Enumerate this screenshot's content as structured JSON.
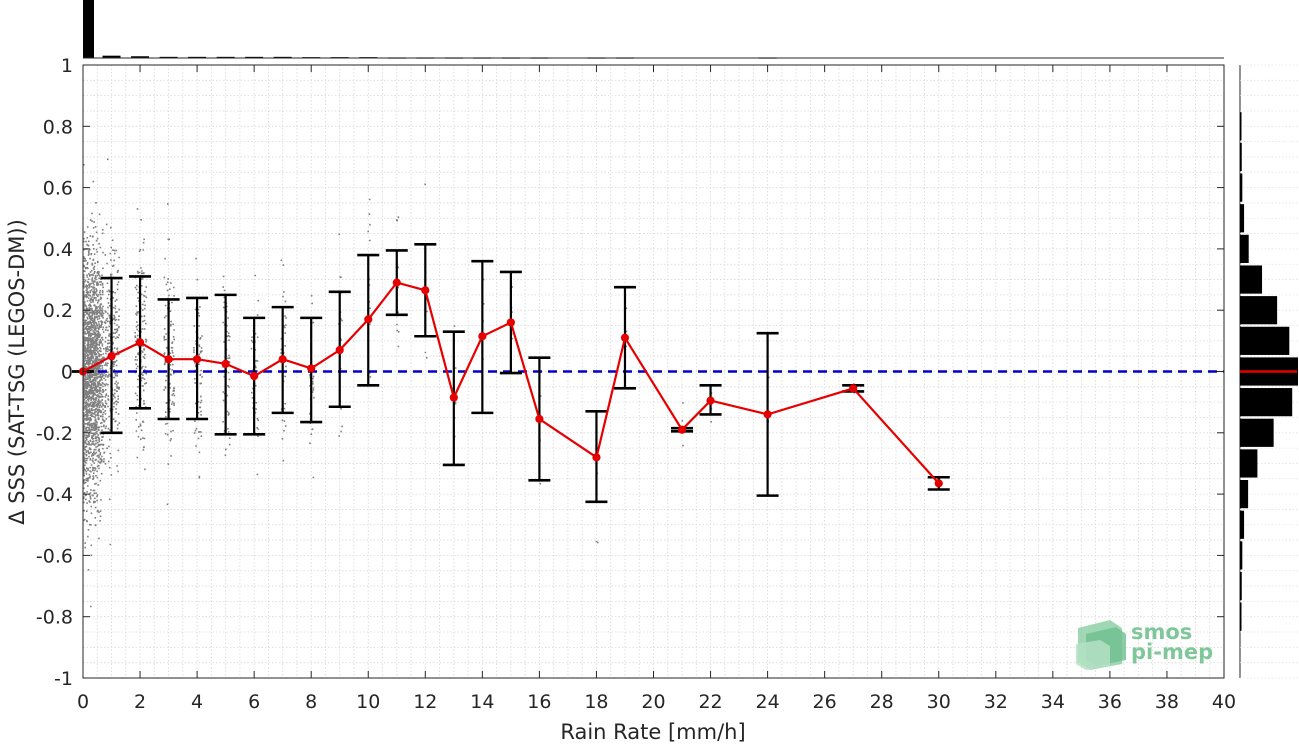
{
  "chart_data": {
    "type": "line",
    "xlabel": "Rain Rate [mm/h]",
    "ylabel": "Δ SSS (SAT-TSG (LEGOS-DM))",
    "xlim": [
      0,
      40
    ],
    "ylim": [
      -1,
      1
    ],
    "xticks": [
      0,
      2,
      4,
      6,
      8,
      10,
      12,
      14,
      16,
      18,
      20,
      22,
      24,
      26,
      28,
      30,
      32,
      34,
      36,
      38,
      40
    ],
    "yticks": [
      -1,
      -0.8,
      -0.6,
      -0.4,
      -0.2,
      0,
      0.2,
      0.4,
      0.6,
      0.8,
      1
    ],
    "grid": true,
    "reference_line": {
      "y": 0,
      "style": "dashed",
      "color": "#0000cc"
    },
    "series": [
      {
        "style": "line-with-errorbars",
        "color": "#e60000",
        "x": [
          0,
          1,
          2,
          3,
          4,
          5,
          6,
          7,
          8,
          9,
          10,
          11,
          12,
          13,
          14,
          15,
          16,
          18,
          19,
          21,
          22,
          24,
          27,
          30
        ],
        "y": [
          0.0,
          0.05,
          0.095,
          0.04,
          0.04,
          0.025,
          -0.015,
          0.04,
          0.01,
          0.07,
          0.17,
          0.29,
          0.265,
          -0.085,
          0.115,
          0.16,
          -0.155,
          -0.28,
          0.11,
          -0.19,
          -0.095,
          -0.14,
          -0.055,
          -0.365
        ],
        "y_low": [
          0.0,
          -0.2,
          -0.12,
          -0.155,
          -0.155,
          -0.205,
          -0.205,
          -0.135,
          -0.165,
          -0.115,
          -0.045,
          0.185,
          0.115,
          -0.305,
          -0.135,
          -0.005,
          -0.355,
          -0.425,
          -0.055,
          -0.195,
          -0.14,
          -0.405,
          -0.065,
          -0.385
        ],
        "y_high": [
          0.0,
          0.305,
          0.31,
          0.235,
          0.24,
          0.25,
          0.175,
          0.21,
          0.175,
          0.26,
          0.38,
          0.395,
          0.415,
          0.13,
          0.36,
          0.325,
          0.045,
          -0.13,
          0.275,
          -0.185,
          -0.045,
          0.125,
          -0.045,
          -0.345
        ]
      }
    ],
    "top_histogram": {
      "description_axis": "x",
      "bins_x": [
        0.2,
        1,
        2,
        3,
        4,
        5,
        6,
        7,
        8,
        9,
        10,
        11,
        12,
        13,
        14,
        15,
        16,
        18,
        19,
        24
      ],
      "relative_heights": [
        1.0,
        0.04,
        0.03,
        0.02,
        0.02,
        0.02,
        0.02,
        0.02,
        0.015,
        0.015,
        0.015,
        0.01,
        0.01,
        0.01,
        0.01,
        0.01,
        0.01,
        0.01,
        0.01,
        0.01
      ]
    },
    "right_histogram": {
      "description_axis": "y",
      "bins_y": [
        -0.8,
        -0.7,
        -0.6,
        -0.5,
        -0.4,
        -0.3,
        -0.2,
        -0.1,
        0.0,
        0.1,
        0.2,
        0.3,
        0.4,
        0.5,
        0.6,
        0.7,
        0.8
      ],
      "relative_counts": [
        0.02,
        0.03,
        0.04,
        0.07,
        0.14,
        0.3,
        0.58,
        0.9,
        1.0,
        0.85,
        0.64,
        0.38,
        0.15,
        0.07,
        0.04,
        0.03,
        0.02
      ],
      "median_marker_color": "#e60000"
    },
    "scatter_color": "#808080"
  },
  "watermark": {
    "line1": "smos",
    "line2": "pi-mep",
    "color": "#7fc79a"
  }
}
